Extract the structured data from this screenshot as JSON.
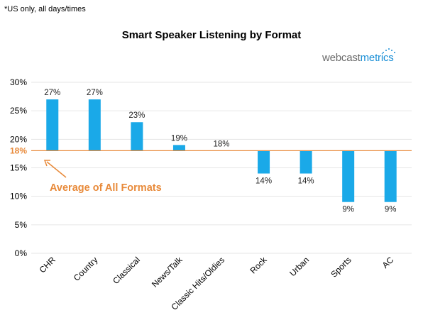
{
  "note": "*US only, all days/times",
  "logo": {
    "part1": "webcast",
    "part2": "metrics"
  },
  "colors": {
    "bar": "#1aa9e8",
    "average": "#e88a3a",
    "grid": "#e6e6e6"
  },
  "chart_data": {
    "type": "bar",
    "title": "Smart Speaker Listening by Format",
    "xlabel": "",
    "ylabel": "",
    "ylim": [
      0,
      30
    ],
    "yticks": [
      "0%",
      "5%",
      "10%",
      "15%",
      "20%",
      "25%",
      "30%"
    ],
    "grid": true,
    "categories": [
      "CHR",
      "Country",
      "Classical",
      "News/Talk",
      "Classic Hits/Oldies",
      "Rock",
      "Urban",
      "Sports",
      "AC"
    ],
    "values": [
      27,
      27,
      23,
      19,
      18,
      14,
      14,
      9,
      9
    ],
    "value_labels": [
      "27%",
      "27%",
      "23%",
      "19%",
      "18%",
      "14%",
      "14%",
      "9%",
      "9%"
    ],
    "baseline": 18,
    "baseline_label": "18%",
    "annotation": "Average of All Formats"
  }
}
